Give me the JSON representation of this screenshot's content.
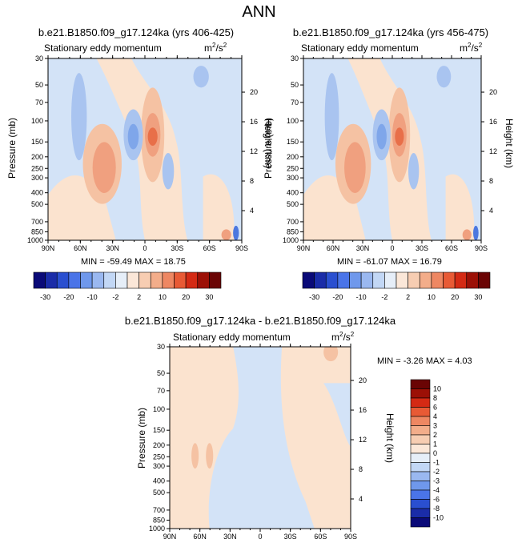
{
  "page": {
    "title": "ANN"
  },
  "palette": {
    "diverging": [
      "#0a0a78",
      "#1a2ca8",
      "#2a4fd0",
      "#4a74e8",
      "#6f98ec",
      "#9ab8f0",
      "#c2d7f5",
      "#e6eef8",
      "#fbe7d8",
      "#f7cdb2",
      "#f3ad8a",
      "#ee8762",
      "#e85a35",
      "#d42a14",
      "#9c1006",
      "#6a0404"
    ],
    "panel_colors": {
      "bg_blue": "#d3e3f7",
      "bg_orange": "#fbe3cf",
      "blue2": "#a9c4f0",
      "blue3": "#7fa6ea",
      "blue4": "#4c78df",
      "orange2": "#f5c2a3",
      "orange3": "#f0a07f",
      "orange4": "#e86f49"
    }
  },
  "chart_data": [
    {
      "type": "heatmap",
      "title": "b.e21.B1850.f09_g17.124ka (yrs 406-425)",
      "left_label": "Stationary eddy momentum",
      "units": "m2/s2",
      "units_base": "m",
      "units_sup1": "2",
      "units_mid": "/s",
      "units_sup2": "2",
      "ylabel": "Pressure (mb)",
      "ylabel_right": "Height (km)",
      "x_ticks": [
        "90N",
        "60N",
        "30N",
        "0",
        "30S",
        "60S",
        "90S"
      ],
      "y_ticks": [
        "30",
        "50",
        "70",
        "100",
        "150",
        "200",
        "250",
        "300",
        "400",
        "500",
        "700",
        "850",
        "1000"
      ],
      "y_ticks_right": [
        "20",
        "16",
        "12",
        "8",
        "4"
      ],
      "stats_text": "MIN = -59.49  MAX =  18.75",
      "min": -59.49,
      "max": 18.75,
      "colorbar_labels": [
        "-30",
        "-20",
        "-10",
        "-2",
        "2",
        "10",
        "20",
        "30"
      ]
    },
    {
      "type": "heatmap",
      "title": "b.e21.B1850.f09_g17.124ka (yrs 456-475)",
      "left_label": "Stationary eddy momentum",
      "units": "m2/s2",
      "units_base": "m",
      "units_sup1": "2",
      "units_mid": "/s",
      "units_sup2": "2",
      "ylabel": "Pressure (mb)",
      "ylabel_right": "Height (km)",
      "x_ticks": [
        "90N",
        "60N",
        "30N",
        "0",
        "30S",
        "60S",
        "90S"
      ],
      "y_ticks": [
        "30",
        "50",
        "70",
        "100",
        "150",
        "200",
        "250",
        "300",
        "400",
        "500",
        "700",
        "850",
        "1000"
      ],
      "y_ticks_right": [
        "20",
        "16",
        "12",
        "8",
        "4"
      ],
      "stats_text": "MIN = -61.07  MAX =  16.79",
      "min": -61.07,
      "max": 16.79,
      "colorbar_labels": [
        "-30",
        "-20",
        "-10",
        "-2",
        "2",
        "10",
        "20",
        "30"
      ]
    },
    {
      "type": "heatmap",
      "title": "b.e21.B1850.f09_g17.124ka - b.e21.B1850.f09_g17.124ka",
      "left_label": "Stationary eddy momentum",
      "units": "m2/s2",
      "units_base": "m",
      "units_sup1": "2",
      "units_mid": "/s",
      "units_sup2": "2",
      "ylabel": "Pressure (mb)",
      "ylabel_right": "Height (km)",
      "x_ticks": [
        "90N",
        "60N",
        "30N",
        "0",
        "30S",
        "60S",
        "90S"
      ],
      "y_ticks": [
        "30",
        "50",
        "70",
        "100",
        "150",
        "200",
        "250",
        "300",
        "400",
        "500",
        "700",
        "850",
        "1000"
      ],
      "y_ticks_right": [
        "20",
        "16",
        "12",
        "8",
        "4"
      ],
      "stats_text": "MIN =  -3.26  MAX =   4.03",
      "min": -3.26,
      "max": 4.03,
      "colorbar_labels": [
        "10",
        "8",
        "6",
        "4",
        "3",
        "2",
        "1",
        "0",
        "-1",
        "-2",
        "-3",
        "-4",
        "-6",
        "-8",
        "-10"
      ]
    }
  ]
}
